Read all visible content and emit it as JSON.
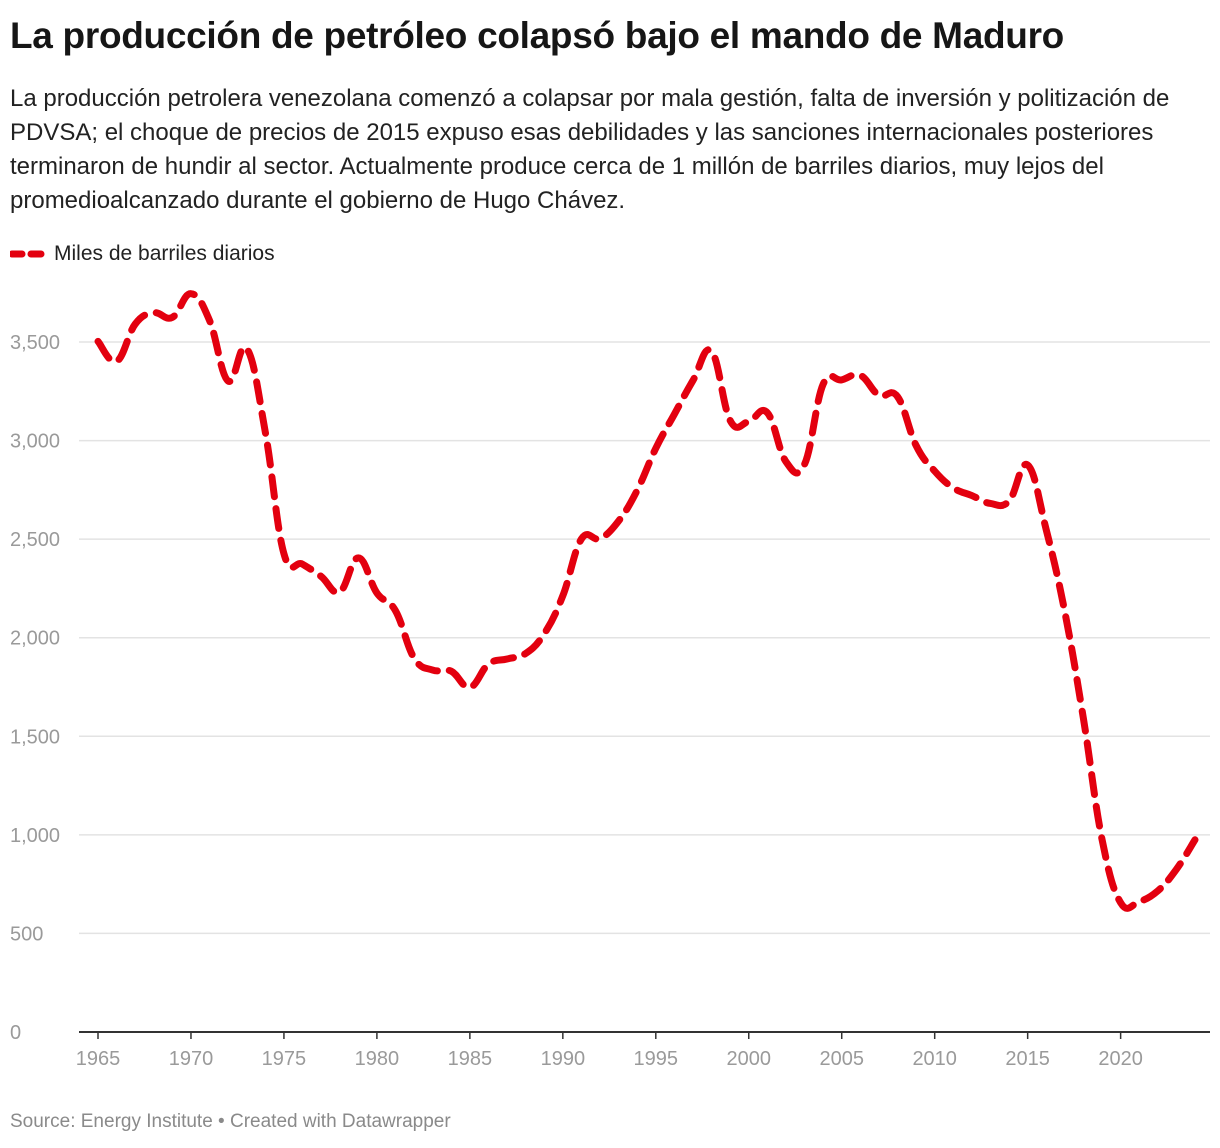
{
  "header": {
    "title": "La producción de petróleo colapsó bajo el mando de Maduro",
    "subtitle": "La producción petrolera venezolana comenzó a colapsar por mala gestión, falta de inversión y politización de PDVSA; el choque de precios de 2015 expuso esas debilidades y las sanciones internacionales posteriores terminaron de hundir al sector. Actualmente produce cerca de 1 millón de barriles diarios, muy lejos del promedioalcanzado durante el gobierno de Hugo Chávez."
  },
  "legend": {
    "label": "Miles de barriles diarios"
  },
  "footer": {
    "text": "Source: Energy Institute • Created with Datawrapper"
  },
  "colors": {
    "line": "#e3000f",
    "grid": "#e3e3e3",
    "axis": "#333333",
    "tick_text": "#9a9a9a"
  },
  "chart_data": {
    "type": "line",
    "title": "La producción de petróleo colapsó bajo el mando de Maduro",
    "xlabel": "",
    "ylabel": "",
    "xlim": [
      1965,
      2024
    ],
    "ylim": [
      0,
      3500
    ],
    "xticks": [
      1965,
      1970,
      1975,
      1980,
      1985,
      1990,
      1995,
      2000,
      2005,
      2010,
      2015,
      2020
    ],
    "xtick_labels": [
      "1965",
      "1970",
      "1975",
      "1980",
      "1985",
      "1990",
      "1995",
      "2000",
      "2005",
      "2010",
      "2015",
      "2020"
    ],
    "yticks": [
      0,
      500,
      1000,
      1500,
      2000,
      2500,
      3000,
      3500
    ],
    "ytick_labels": [
      "0",
      "500",
      "1,000",
      "1,500",
      "2,000",
      "2,500",
      "3,000",
      "3,500"
    ],
    "grid": true,
    "legend_position": "top-left",
    "series": [
      {
        "name": "Miles de barriles diarios",
        "style": "dashed",
        "x": [
          1965,
          1966,
          1967,
          1968,
          1969,
          1970,
          1971,
          1972,
          1973,
          1974,
          1975,
          1976,
          1977,
          1978,
          1979,
          1980,
          1981,
          1982,
          1983,
          1984,
          1985,
          1986,
          1987,
          1988,
          1989,
          1990,
          1991,
          1992,
          1993,
          1994,
          1995,
          1996,
          1997,
          1998,
          1999,
          2000,
          2001,
          2002,
          2003,
          2004,
          2005,
          2006,
          2007,
          2008,
          2009,
          2010,
          2011,
          2012,
          2013,
          2014,
          2015,
          2016,
          2017,
          2018,
          2019,
          2020,
          2021,
          2022,
          2023,
          2024
        ],
        "values": [
          3503,
          3402,
          3591,
          3648,
          3625,
          3745,
          3609,
          3302,
          3467,
          3042,
          2426,
          2373,
          2311,
          2232,
          2405,
          2227,
          2137,
          1897,
          1836,
          1830,
          1748,
          1866,
          1892,
          1920,
          2020,
          2213,
          2501,
          2503,
          2592,
          2748,
          2961,
          3134,
          3305,
          3453,
          3102,
          3097,
          3141,
          2893,
          2880,
          3286,
          3308,
          3331,
          3230,
          3223,
          2975,
          2845,
          2760,
          2721,
          2681,
          2693,
          2876,
          2547,
          2130,
          1589,
          977,
          656,
          662,
          716,
          825,
          975
        ]
      }
    ]
  }
}
